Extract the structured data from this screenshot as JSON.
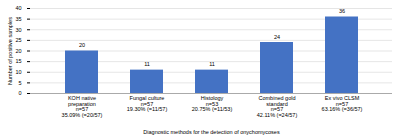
{
  "chart_data": {
    "type": "bar",
    "categories": [
      "KOH native\npreparation\nn=57\n35.09% (=20/57)",
      "Fungal culture\nn=57\n19.30% (=11/57)",
      "Histology\nn=53\n20.75% (=11/53)",
      "Combined gold\nstandard\nn=57\n42.11% (=24/57)",
      "Ex vivo CLSM\nn=57\n63.16% (=36/57)"
    ],
    "values": [
      20,
      11,
      11,
      24,
      36
    ],
    "color": "#4472c4",
    "ylabel": "Number of positive samples",
    "xlabel": "Diagnostic methods for the detection of onychomycoses",
    "ylim": [
      0,
      40
    ],
    "yticks": [
      0,
      5,
      10,
      15,
      20,
      25,
      30,
      35,
      40
    ],
    "grid": true,
    "data_labels": true
  }
}
